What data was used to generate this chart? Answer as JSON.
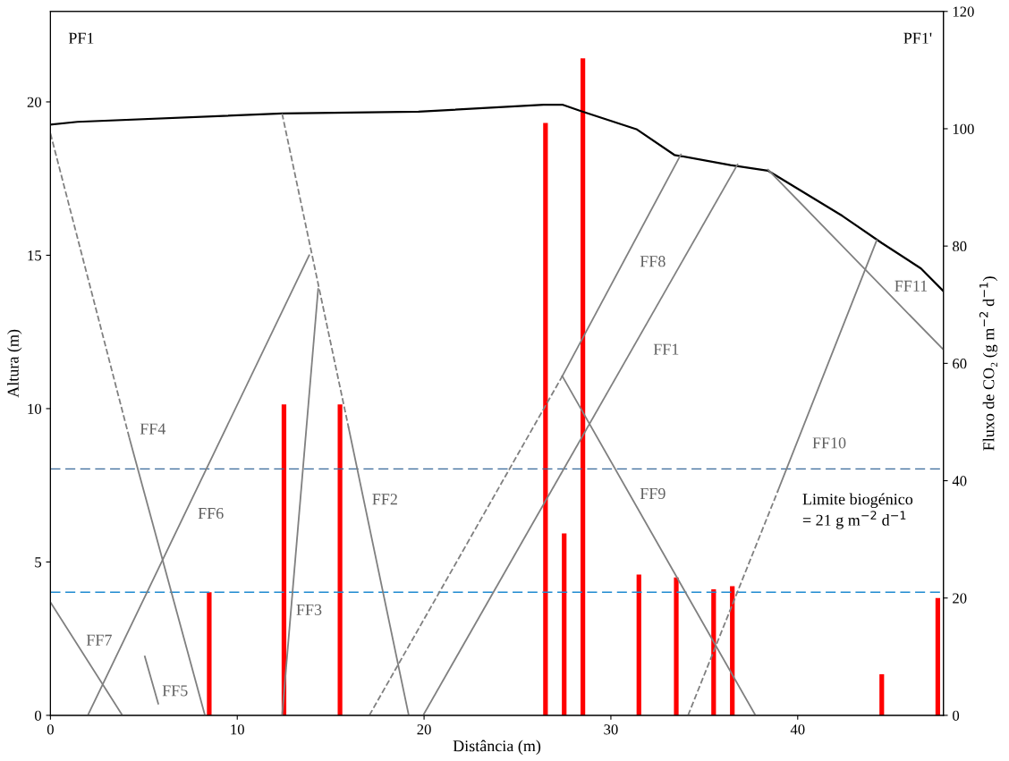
{
  "chart_data": {
    "type": "line",
    "xlabel": "Distância (m)",
    "ylabel": "Altura (m)",
    "y2label": "Fluxo de CO₂ (g m$^{−2}$ d$^{−1}$)",
    "xlim": [
      0,
      47.8
    ],
    "xticks": [
      0,
      10,
      20,
      30,
      40
    ],
    "ylim": [
      0,
      22.95
    ],
    "yticks": [
      0,
      5,
      10,
      15,
      20
    ],
    "y2lim": [
      0,
      120
    ],
    "y2ticks": [
      0,
      20,
      40,
      60,
      80,
      100,
      120
    ],
    "grid": false,
    "series": [
      {
        "color": "#000000",
        "line_style": "solid",
        "x": [
          0,
          1.44,
          12.4,
          19.7,
          26.4,
          27.4,
          28.4,
          31.4,
          33.4,
          36.4,
          38.4,
          42.4,
          44.5,
          46.6,
          47.8
        ],
        "values": [
          19.26,
          19.35,
          19.62,
          19.68,
          19.91,
          19.91,
          19.7,
          19.1,
          18.27,
          17.94,
          17.76,
          16.28,
          15.4,
          14.57,
          13.83
        ]
      },
      {
        "color": "#808080",
        "line_style": "dashed",
        "x": [
          0,
          4.23
        ],
        "values": [
          18.97,
          9.03
        ]
      },
      {
        "color": "#808080",
        "line_style": "solid",
        "x": [
          4.23,
          8.27
        ],
        "values": [
          9.03,
          0
        ]
      },
      {
        "color": "#808080",
        "line_style": "solid",
        "x": [
          2.0,
          13.85
        ],
        "values": [
          0,
          15.0
        ]
      },
      {
        "color": "#808080",
        "line_style": "solid",
        "x": [
          0,
          3.85
        ],
        "values": [
          3.69,
          0
        ]
      },
      {
        "color": "#808080",
        "line_style": "solid",
        "x": [
          5.05,
          5.77
        ],
        "values": [
          1.92,
          0.38
        ]
      },
      {
        "color": "#808080",
        "line_style": "dashed",
        "x": [
          12.4,
          15.96
        ],
        "values": [
          19.62,
          9.38
        ]
      },
      {
        "color": "#808080",
        "line_style": "solid",
        "x": [
          15.96,
          19.18
        ],
        "values": [
          9.38,
          0
        ]
      },
      {
        "color": "#808080",
        "line_style": "solid",
        "x": [
          12.4,
          14.33
        ],
        "values": [
          0,
          13.9
        ]
      },
      {
        "color": "#808080",
        "line_style": "dashed",
        "x": [
          17.07,
          27.4
        ],
        "values": [
          0,
          11.06
        ]
      },
      {
        "color": "#808080",
        "line_style": "solid",
        "x": [
          27.4,
          33.75
        ],
        "values": [
          11.06,
          18.29
        ]
      },
      {
        "color": "#808080",
        "line_style": "solid",
        "x": [
          19.95,
          36.78
        ],
        "values": [
          0,
          17.96
        ]
      },
      {
        "color": "#808080",
        "line_style": "solid",
        "x": [
          27.4,
          37.74
        ],
        "values": [
          11.06,
          0
        ]
      },
      {
        "color": "#808080",
        "line_style": "dashed",
        "x": [
          34.13,
          38.94
        ],
        "values": [
          0,
          7.32
        ]
      },
      {
        "color": "#808080",
        "line_style": "solid",
        "x": [
          38.94,
          44.23
        ],
        "values": [
          7.32,
          15.49
        ]
      },
      {
        "color": "#808080",
        "line_style": "solid",
        "x": [
          38.41,
          47.8
        ],
        "values": [
          17.79,
          11.92
        ]
      },
      {
        "type": "bar",
        "axis": "y2",
        "color": "#ff0000",
        "x": [
          8.5,
          12.5,
          15.5,
          26.5,
          27.5,
          28.5,
          31.5,
          33.5,
          35.5,
          36.5,
          44.5,
          47.5
        ],
        "values": [
          21,
          53,
          53,
          101,
          31,
          112,
          24,
          23.5,
          21.5,
          22,
          7,
          20
        ]
      }
    ],
    "ref_lines": [
      {
        "axis": "y2",
        "value": 42,
        "color": "#3a6a9a",
        "line_style": "dashed"
      },
      {
        "axis": "y2",
        "value": 21,
        "color": "#1f8ad0",
        "line_style": "dashed"
      }
    ],
    "annotations": [
      "PF1",
      "PF1'",
      "FF4",
      "FF6",
      "FF7",
      "FF5",
      "FF3",
      "FF2",
      "FF8",
      "FF1",
      "FF9",
      "FF10",
      "FF11",
      "Limite biogénico\n= 21 g m$^{−2}$ d$^{−1}$"
    ]
  }
}
